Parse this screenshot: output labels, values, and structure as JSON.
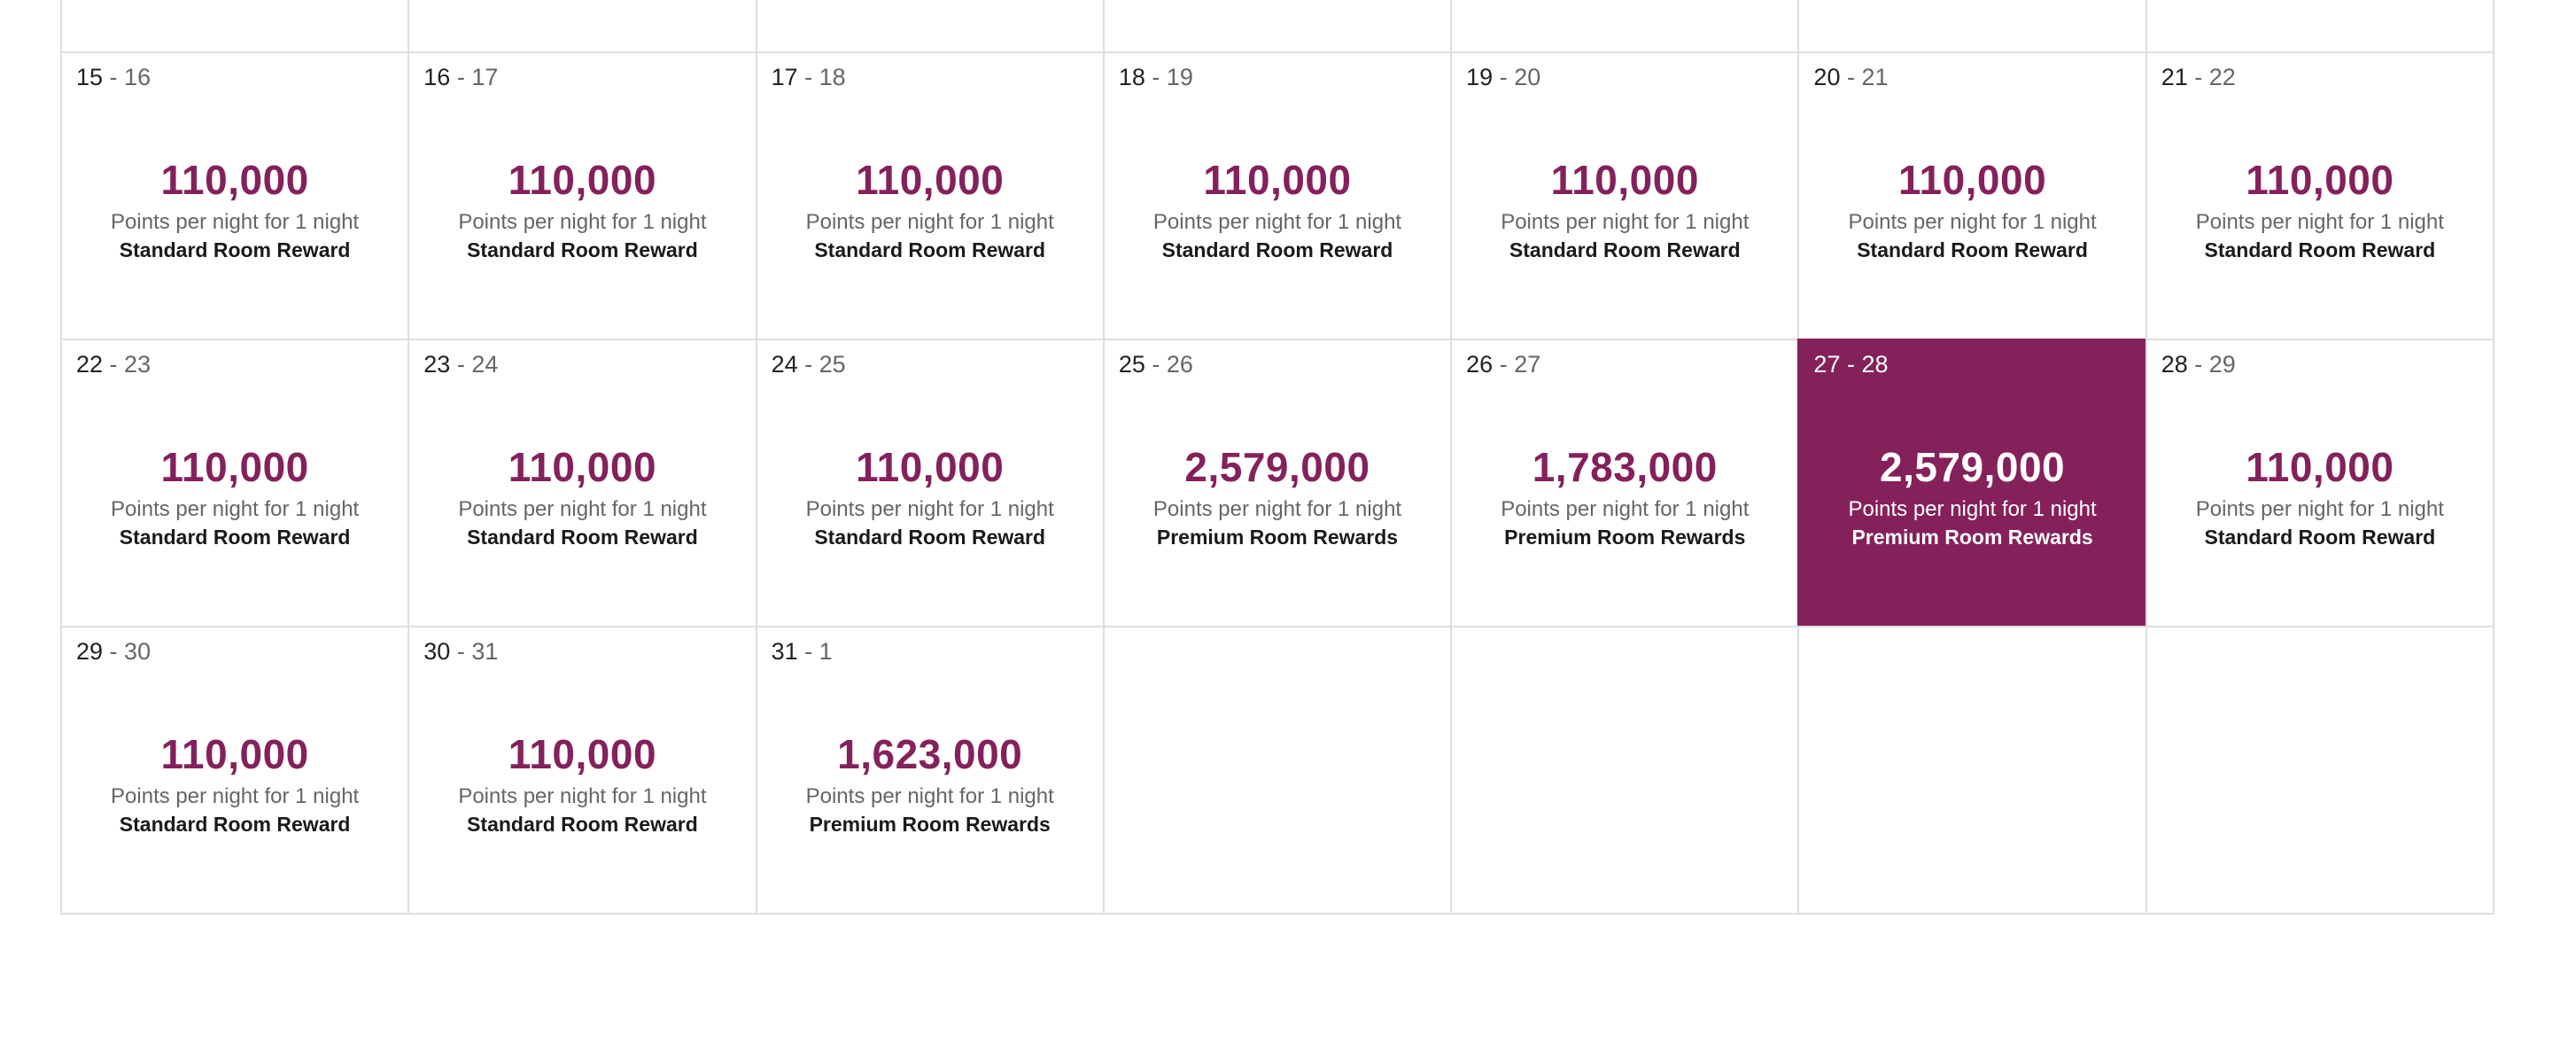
{
  "calendar": {
    "accent_color": "#84215b",
    "selected_bg_color": "#84215b",
    "weeks": [
      [
        {
          "start": "15",
          "end": "16",
          "points": "110,000",
          "per_night": "Points per night for 1 night",
          "room": "Standard Room Reward"
        },
        {
          "start": "16",
          "end": "17",
          "points": "110,000",
          "per_night": "Points per night for 1 night",
          "room": "Standard Room Reward"
        },
        {
          "start": "17",
          "end": "18",
          "points": "110,000",
          "per_night": "Points per night for 1 night",
          "room": "Standard Room Reward"
        },
        {
          "start": "18",
          "end": "19",
          "points": "110,000",
          "per_night": "Points per night for 1 night",
          "room": "Standard Room Reward"
        },
        {
          "start": "19",
          "end": "20",
          "points": "110,000",
          "per_night": "Points per night for 1 night",
          "room": "Standard Room Reward"
        },
        {
          "start": "20",
          "end": "21",
          "points": "110,000",
          "per_night": "Points per night for 1 night",
          "room": "Standard Room Reward"
        },
        {
          "start": "21",
          "end": "22",
          "points": "110,000",
          "per_night": "Points per night for 1 night",
          "room": "Standard Room Reward"
        }
      ],
      [
        {
          "start": "22",
          "end": "23",
          "points": "110,000",
          "per_night": "Points per night for 1 night",
          "room": "Standard Room Reward"
        },
        {
          "start": "23",
          "end": "24",
          "points": "110,000",
          "per_night": "Points per night for 1 night",
          "room": "Standard Room Reward"
        },
        {
          "start": "24",
          "end": "25",
          "points": "110,000",
          "per_night": "Points per night for 1 night",
          "room": "Standard Room Reward"
        },
        {
          "start": "25",
          "end": "26",
          "points": "2,579,000",
          "per_night": "Points per night for 1 night",
          "room": "Premium Room Rewards"
        },
        {
          "start": "26",
          "end": "27",
          "points": "1,783,000",
          "per_night": "Points per night for 1 night",
          "room": "Premium Room Rewards"
        },
        {
          "start": "27",
          "end": "28",
          "points": "2,579,000",
          "per_night": "Points per night for 1 night",
          "room": "Premium Room Rewards",
          "selected": true
        },
        {
          "start": "28",
          "end": "29",
          "points": "110,000",
          "per_night": "Points per night for 1 night",
          "room": "Standard Room Reward"
        }
      ],
      [
        {
          "start": "29",
          "end": "30",
          "points": "110,000",
          "per_night": "Points per night for 1 night",
          "room": "Standard Room Reward"
        },
        {
          "start": "30",
          "end": "31",
          "points": "110,000",
          "per_night": "Points per night for 1 night",
          "room": "Standard Room Reward"
        },
        {
          "start": "31",
          "end": "1",
          "points": "1,623,000",
          "per_night": "Points per night for 1 night",
          "room": "Premium Room Rewards"
        }
      ]
    ]
  }
}
